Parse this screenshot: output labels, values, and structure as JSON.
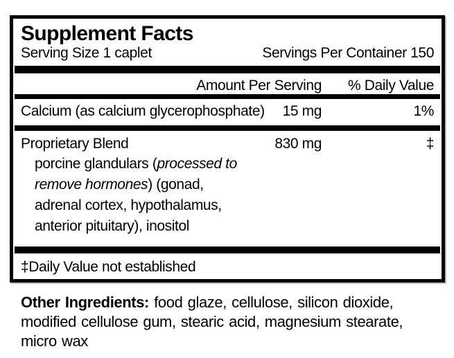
{
  "colors": {
    "text": "#000000",
    "background": "#ffffff",
    "rule": "#000000"
  },
  "panel": {
    "title": "Supplement Facts",
    "serving_size": "Serving Size 1 caplet",
    "servings_per_container": "Servings Per Container 150",
    "columns": {
      "amount_header": "Amount Per Serving",
      "daily_value_header": "% Daily Value"
    },
    "calcium_row": {
      "name": "Calcium (as calcium glycerophosphate)",
      "amount": "15 mg",
      "daily_value": "1%"
    },
    "proprietary_row": {
      "name": "Proprietary Blend",
      "amount": "830 mg",
      "daily_value": "‡",
      "desc_line1_regular": "porcine glandulars (",
      "desc_line1_italic": "processed to",
      "desc_line2_italic": "remove hormones",
      "desc_line2_regular": ") (gonad,",
      "desc_line3": "adrenal cortex, hypothalamus,",
      "desc_line4": "anterior pituitary), inositol"
    },
    "footnote": "‡Daily Value not established"
  },
  "other_ingredients": {
    "label": "Other Ingredients:",
    "line1": "food glaze, cellulose, silicon dioxide,",
    "line2": "modified cellulose gum, stearic acid, magnesium stearate,",
    "line3": "micro wax"
  }
}
